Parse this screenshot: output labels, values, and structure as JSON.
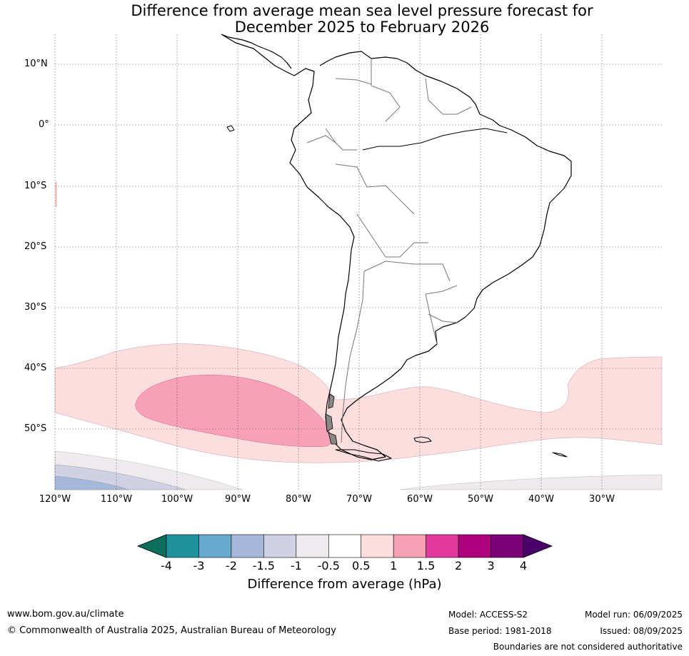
{
  "title_line1": "Difference from average mean sea level pressure forecast for",
  "title_line2": "December 2025 to February 2026",
  "lat_labels": [
    "10°N",
    "0°",
    "10°S",
    "20°S",
    "30°S",
    "40°S",
    "50°S"
  ],
  "lon_labels": [
    "120°W",
    "110°W",
    "100°W",
    "90°W",
    "80°W",
    "70°W",
    "60°W",
    "50°W",
    "40°W",
    "30°W"
  ],
  "colorbar": {
    "label": "Difference from average (hPa)",
    "ticks": [
      "-4",
      "-3",
      "-2",
      "-1.5",
      "-1",
      "-0.5",
      "0.5",
      "1",
      "1.5",
      "2",
      "3",
      "4"
    ],
    "colors": [
      "#0d6e5c",
      "#1f939d",
      "#67a9cf",
      "#a6b8d9",
      "#d1d1e6",
      "#efeaee",
      "#ffffff",
      "#fddede",
      "#f8a0b8",
      "#e13a9c",
      "#ae017e",
      "#7a0177",
      "#49006a"
    ]
  },
  "footer": {
    "site": "www.bom.gov.au/climate",
    "copyright": "© Commonwealth of Australia 2025, Australian Bureau of Meteorology",
    "model": "Model: ACCESS-S2",
    "base_period": "Base period: 1981-2018",
    "model_run": "Model run: 06/09/2025",
    "issued": "Issued: 08/09/2025",
    "disclaimer": "Boundaries are not considered authoritative"
  }
}
